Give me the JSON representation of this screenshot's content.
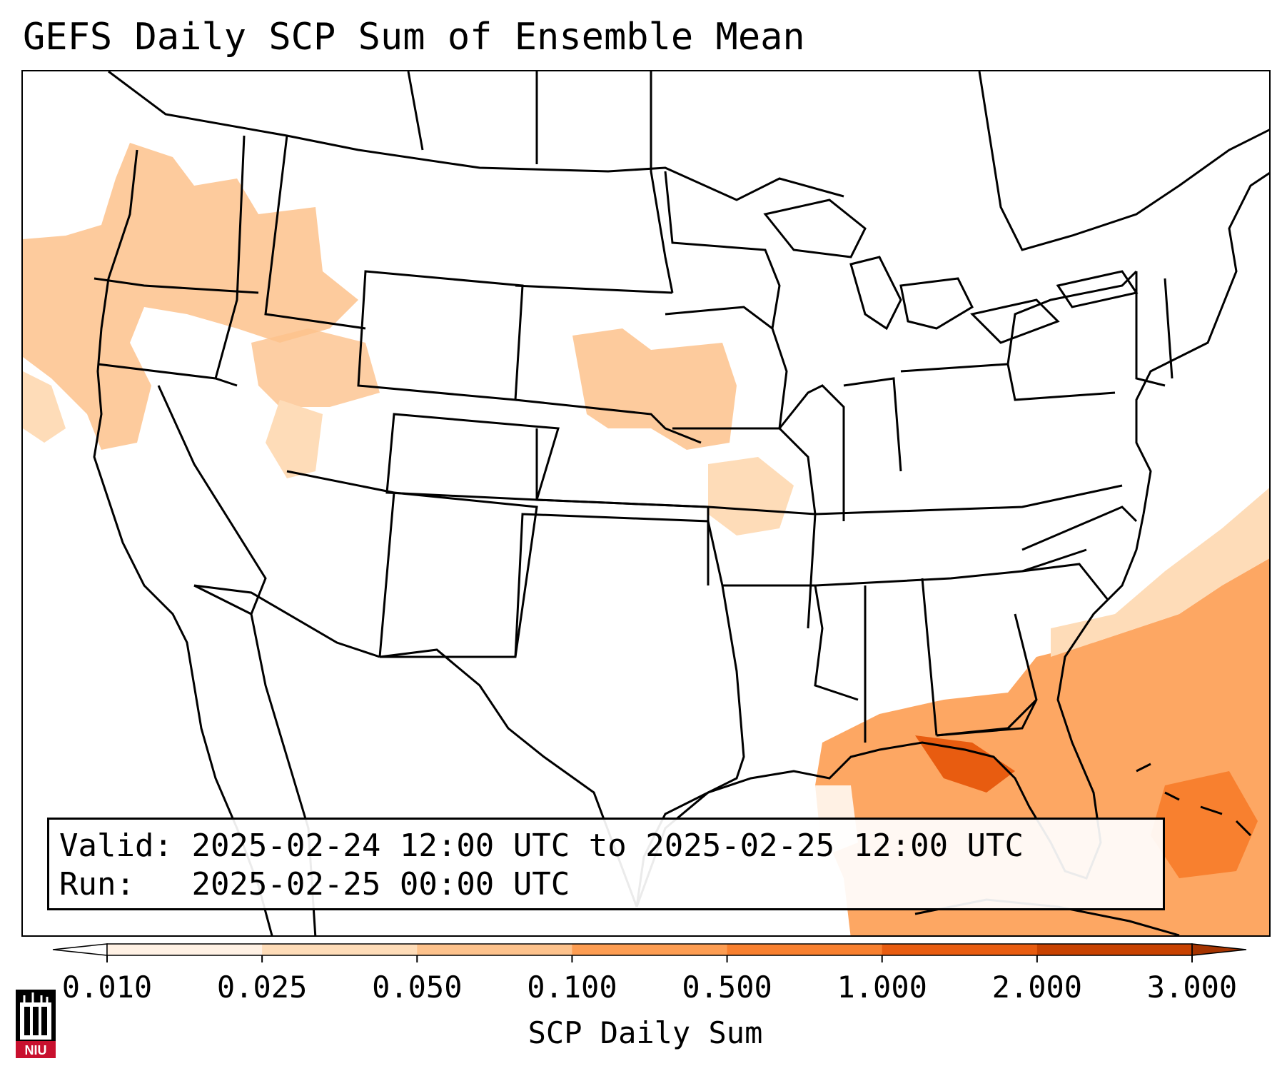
{
  "title": "GEFS Daily SCP Sum of Ensemble Mean",
  "info": {
    "valid_label": "Valid:",
    "valid_value": "2025-02-24 12:00 UTC to 2025-02-25 12:00 UTC",
    "run_label": "Run:",
    "run_value": "2025-02-25 00:00 UTC"
  },
  "colorbar": {
    "label": "SCP Daily Sum",
    "ticks": [
      "0.010",
      "0.025",
      "0.050",
      "0.100",
      "0.500",
      "1.000",
      "2.000",
      "3.000"
    ],
    "colors": [
      "#fff1e4",
      "#fedcb8",
      "#fdc28c",
      "#fd9d52",
      "#f8802f",
      "#e85c10",
      "#c84200"
    ],
    "extend_low_color": "#ffffff",
    "extend_high_color": "#a53400"
  },
  "logo": {
    "text": "NIU",
    "color": "#c8102e"
  }
}
